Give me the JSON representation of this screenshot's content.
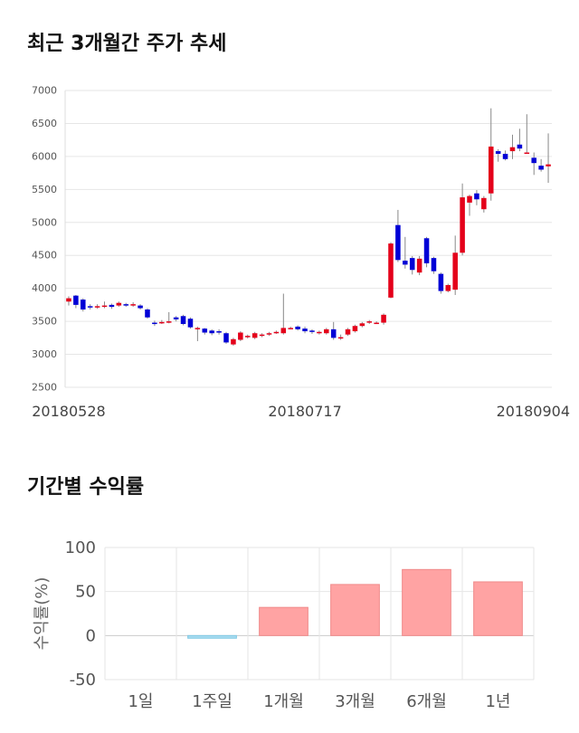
{
  "section1": {
    "title": "최근 3개월간 주가 추세"
  },
  "section2": {
    "title": "기간별 수익률"
  },
  "colors": {
    "up": "#e4001a",
    "down": "#0000d6",
    "bar_positive": "#ffa3a3",
    "bar_negative": "#a9dcf0",
    "grid": "#e6e6e6",
    "text": "#555555"
  },
  "chart_data": [
    {
      "type": "candlestick",
      "title": "최근 3개월간 주가 추세",
      "ylim": [
        2500,
        7000
      ],
      "yticks": [
        2500,
        3000,
        3500,
        4000,
        4500,
        5000,
        5500,
        6000,
        6500,
        7000
      ],
      "x_tick_labels": [
        "20180528",
        "20180717",
        "20180904"
      ],
      "x_tick_index": [
        0,
        33,
        65
      ],
      "candles": [
        [
          3800,
          3850,
          3740,
          3880
        ],
        [
          3890,
          3750,
          3700,
          3900
        ],
        [
          3830,
          3680,
          3650,
          3850
        ],
        [
          3730,
          3710,
          3680,
          3760
        ],
        [
          3720,
          3730,
          3690,
          3760
        ],
        [
          3720,
          3740,
          3700,
          3800
        ],
        [
          3750,
          3720,
          3690,
          3770
        ],
        [
          3740,
          3780,
          3720,
          3800
        ],
        [
          3760,
          3750,
          3720,
          3780
        ],
        [
          3750,
          3760,
          3720,
          3790
        ],
        [
          3740,
          3700,
          3680,
          3760
        ],
        [
          3680,
          3560,
          3540,
          3700
        ],
        [
          3480,
          3470,
          3430,
          3510
        ],
        [
          3480,
          3490,
          3460,
          3520
        ],
        [
          3490,
          3500,
          3470,
          3640
        ],
        [
          3560,
          3530,
          3500,
          3580
        ],
        [
          3580,
          3460,
          3440,
          3600
        ],
        [
          3540,
          3410,
          3390,
          3560
        ],
        [
          3400,
          3400,
          3200,
          3420
        ],
        [
          3390,
          3330,
          3300,
          3400
        ],
        [
          3360,
          3320,
          3290,
          3380
        ],
        [
          3350,
          3340,
          3300,
          3380
        ],
        [
          3320,
          3180,
          3160,
          3340
        ],
        [
          3150,
          3230,
          3130,
          3250
        ],
        [
          3220,
          3330,
          3200,
          3350
        ],
        [
          3260,
          3280,
          3240,
          3300
        ],
        [
          3250,
          3320,
          3230,
          3340
        ],
        [
          3290,
          3300,
          3260,
          3320
        ],
        [
          3300,
          3320,
          3280,
          3340
        ],
        [
          3330,
          3340,
          3310,
          3360
        ],
        [
          3320,
          3400,
          3300,
          3920
        ],
        [
          3400,
          3400,
          3380,
          3420
        ],
        [
          3420,
          3380,
          3360,
          3440
        ],
        [
          3390,
          3350,
          3320,
          3420
        ],
        [
          3360,
          3340,
          3310,
          3380
        ],
        [
          3330,
          3340,
          3300,
          3360
        ],
        [
          3320,
          3380,
          3300,
          3400
        ],
        [
          3380,
          3250,
          3220,
          3490
        ],
        [
          3240,
          3260,
          3220,
          3300
        ],
        [
          3300,
          3380,
          3280,
          3400
        ],
        [
          3350,
          3430,
          3330,
          3450
        ],
        [
          3430,
          3470,
          3410,
          3490
        ],
        [
          3480,
          3500,
          3460,
          3520
        ],
        [
          3480,
          3480,
          3460,
          3500
        ],
        [
          3480,
          3600,
          3450,
          3620
        ],
        [
          3860,
          4680,
          3850,
          4700
        ],
        [
          4960,
          4430,
          4400,
          5190
        ],
        [
          4420,
          4360,
          4300,
          4780
        ],
        [
          4460,
          4280,
          4210,
          4490
        ],
        [
          4240,
          4450,
          4200,
          4490
        ],
        [
          4760,
          4380,
          4320,
          4780
        ],
        [
          4460,
          4260,
          4220,
          4480
        ],
        [
          4220,
          3960,
          3920,
          4240
        ],
        [
          3960,
          4050,
          3940,
          4070
        ],
        [
          3980,
          4540,
          3900,
          4800
        ],
        [
          4540,
          5380,
          4500,
          5590
        ],
        [
          5300,
          5400,
          5100,
          5420
        ],
        [
          5440,
          5350,
          5260,
          5490
        ],
        [
          5200,
          5370,
          5150,
          5400
        ],
        [
          5440,
          6150,
          5330,
          6730
        ],
        [
          6080,
          6040,
          5920,
          6110
        ],
        [
          6040,
          5960,
          5940,
          6090
        ],
        [
          6080,
          6140,
          5960,
          6330
        ],
        [
          6180,
          6120,
          6080,
          6420
        ],
        [
          6060,
          6060,
          6040,
          6640
        ],
        [
          5980,
          5900,
          5720,
          6060
        ],
        [
          5860,
          5800,
          5770,
          5960
        ],
        [
          5850,
          5880,
          5600,
          6350
        ]
      ]
    },
    {
      "type": "bar",
      "title": "기간별 수익률",
      "ylabel": "수익률(%)",
      "ylim": [
        -50,
        100
      ],
      "yticks": [
        -50,
        0,
        50,
        100
      ],
      "categories": [
        "1일",
        "1주일",
        "1개월",
        "3개월",
        "6개월",
        "1년"
      ],
      "values": [
        0,
        -3,
        32,
        58,
        75,
        61
      ]
    }
  ]
}
